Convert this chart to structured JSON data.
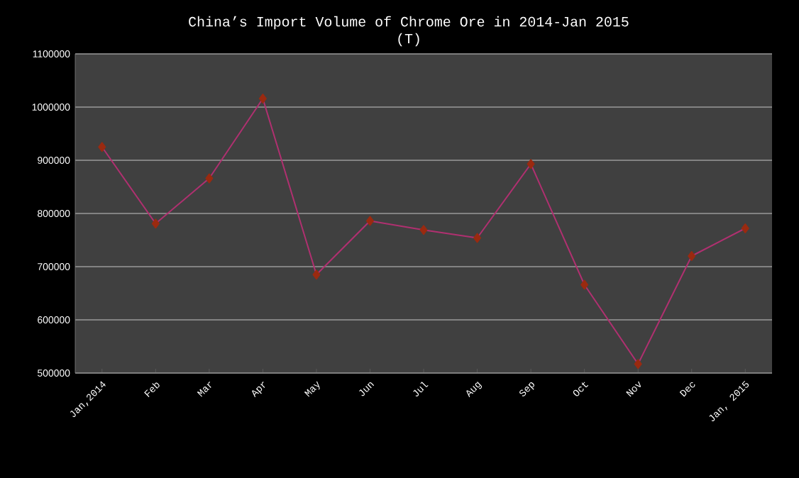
{
  "chart_data": {
    "type": "line",
    "title": "China’s Import Volume of Chrome Ore in 2014-Jan 2015",
    "subtitle": "(T)",
    "categories": [
      "Jan,2014",
      "Feb",
      "Mar",
      "Apr",
      "May",
      "Jun",
      "Jul",
      "Aug",
      "Sep",
      "Oct",
      "Nov",
      "Dec",
      "Jan, 2015"
    ],
    "series": [
      {
        "color": "#b03070",
        "values": [
          925000,
          781000,
          866000,
          1016000,
          685000,
          786000,
          769000,
          754000,
          893000,
          666000,
          517000,
          720000,
          772000
        ]
      }
    ],
    "marker": "diamond",
    "ylim": [
      500000,
      1100000
    ],
    "yticks": [
      500000,
      600000,
      700000,
      800000,
      900000,
      1000000,
      1100000
    ],
    "grid": "y"
  }
}
